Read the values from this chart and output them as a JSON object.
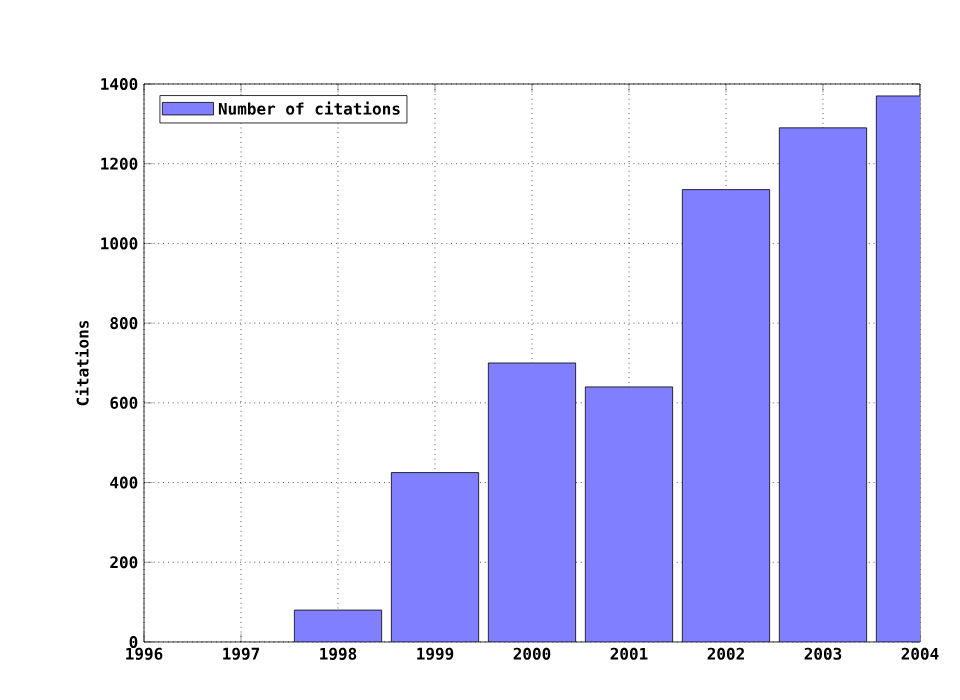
{
  "chart_data": {
    "type": "bar",
    "ylabel": "Citations",
    "x": [
      1998,
      1999,
      2000,
      2001,
      2002,
      2003,
      2004
    ],
    "series": [
      {
        "name": "Number of citations",
        "color": "#7f7fff",
        "values": [
          80,
          425,
          700,
          640,
          1135,
          1290,
          1370
        ]
      }
    ],
    "xlim": [
      1996,
      2004
    ],
    "xticks": [
      1996,
      1997,
      1998,
      1999,
      2000,
      2001,
      2002,
      2003,
      2004
    ],
    "ylim": [
      0,
      1400
    ],
    "yticks": [
      0,
      200,
      400,
      600,
      800,
      1000,
      1200,
      1400
    ],
    "grid": true,
    "legend": "top left"
  }
}
